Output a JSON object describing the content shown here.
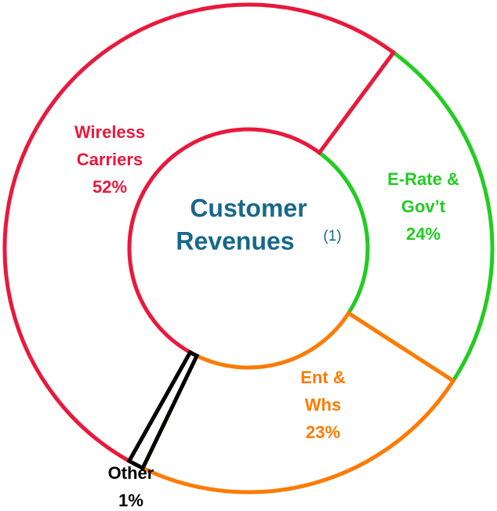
{
  "chart_data": {
    "type": "donut",
    "title": [
      "Customer",
      "Revenues"
    ],
    "title_note": "(1)",
    "categories": [
      [
        "E-Rate &",
        "Gov’t"
      ],
      [
        "Ent &",
        "Whs"
      ],
      [
        "Other"
      ],
      [
        "Wireless",
        "Carriers"
      ]
    ],
    "values": [
      24,
      23,
      1,
      52
    ],
    "value_labels": [
      "24%",
      "23%",
      "1%",
      "52%"
    ],
    "colors": [
      "#22cc22",
      "#ff7a00",
      "#000000",
      "#e8193c"
    ]
  }
}
